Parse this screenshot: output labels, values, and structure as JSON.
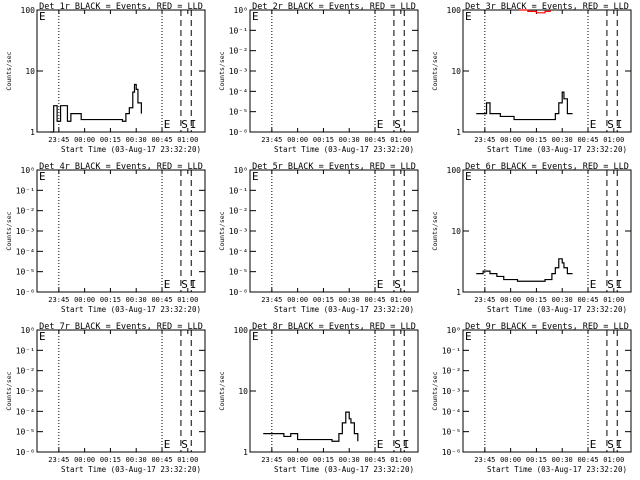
{
  "chart_data": [
    {
      "type": "line",
      "title": "Det 1r BLACK = Events, RED = LLD",
      "ylabel": "Counts/sec",
      "xlabel": "Start Time (03-Aug-17 23:32:20)",
      "x_ticks": [
        "23:45",
        "00:00",
        "00:15",
        "00:30",
        "00:45",
        "01:00"
      ],
      "y_scale": "log",
      "ylim": [
        1,
        100
      ],
      "y_ticks": [
        "1",
        "10",
        "100"
      ],
      "markers": [
        "E",
        "S",
        "I"
      ],
      "series": [
        {
          "color": "#000000",
          "x": [
            "23:40",
            "23:42",
            "23:44",
            "23:46",
            "23:48",
            "23:50",
            "23:52",
            "23:55",
            "23:58",
            "00:02",
            "00:06",
            "00:10",
            "00:14",
            "00:18",
            "00:22",
            "00:24",
            "00:26",
            "00:28",
            "00:29",
            "00:30",
            "00:31",
            "00:33"
          ],
          "values": [
            1,
            2.7,
            1.5,
            2.7,
            2.7,
            1.5,
            2,
            2,
            1.6,
            1.6,
            1.6,
            1.6,
            1.6,
            1.6,
            1.5,
            2,
            2.5,
            4.5,
            6,
            5,
            3,
            2
          ]
        }
      ]
    },
    {
      "type": "line",
      "title": "Det 2r BLACK = Events, RED = LLD",
      "ylabel": "Counts/sec",
      "xlabel": "Start Time (03-Aug-17 23:32:20)",
      "x_ticks": [
        "23:45",
        "00:00",
        "00:15",
        "00:30",
        "00:45",
        "01:00"
      ],
      "y_scale": "log",
      "ylim": [
        1e-06,
        1
      ],
      "y_ticks": [
        "10⁰",
        "10⁻¹",
        "10⁻²",
        "10⁻³",
        "10⁻⁴",
        "10⁻⁵",
        "10⁻⁶"
      ],
      "markers": [
        "E",
        "S"
      ],
      "series": []
    },
    {
      "type": "line",
      "title": "Det 3r BLACK = Events, RED = LLD",
      "ylabel": "Counts/sec",
      "xlabel": "Start Time (03-Aug-17 23:32:20)",
      "x_ticks": [
        "23:45",
        "00:00",
        "00:15",
        "00:30",
        "00:45",
        "01:00"
      ],
      "y_scale": "log",
      "ylim": [
        1,
        100
      ],
      "y_ticks": [
        "1",
        "10",
        "100"
      ],
      "markers": [
        "E",
        "S",
        "I"
      ],
      "series": [
        {
          "color": "#000000",
          "x": [
            "23:40",
            "23:44",
            "23:46",
            "23:48",
            "23:50",
            "23:54",
            "23:58",
            "00:02",
            "00:06",
            "00:10",
            "00:14",
            "00:18",
            "00:22",
            "00:26",
            "00:28",
            "00:30",
            "00:31",
            "00:33",
            "00:36"
          ],
          "values": [
            2,
            2,
            3,
            2,
            2,
            1.8,
            1.8,
            1.6,
            1.6,
            1.6,
            1.6,
            1.6,
            1.6,
            2,
            3,
            4.5,
            3.5,
            2,
            2
          ]
        },
        {
          "color": "#ff0000",
          "x": [
            "00:05",
            "00:10",
            "00:15",
            "00:18",
            "00:20",
            "00:23"
          ],
          "values": [
            100,
            95,
            90,
            90,
            95,
            100
          ]
        }
      ]
    },
    {
      "type": "line",
      "title": "Det 4r BLACK = Events, RED = LLD",
      "ylabel": "Counts/sec",
      "xlabel": "Start Time (03-Aug-17 23:32:20)",
      "x_ticks": [
        "23:45",
        "00:00",
        "00:15",
        "00:30",
        "00:45",
        "01:00"
      ],
      "y_scale": "log",
      "ylim": [
        1e-06,
        1
      ],
      "y_ticks": [
        "10⁰",
        "10⁻¹",
        "10⁻²",
        "10⁻³",
        "10⁻⁴",
        "10⁻⁵",
        "10⁻⁶"
      ],
      "markers": [
        "E",
        "S",
        "I"
      ],
      "series": []
    },
    {
      "type": "line",
      "title": "Det 5r BLACK = Events, RED = LLD",
      "ylabel": "Counts/sec",
      "xlabel": "Start Time (03-Aug-17 23:32:20)",
      "x_ticks": [
        "23:45",
        "00:00",
        "00:15",
        "00:30",
        "00:45",
        "01:00"
      ],
      "y_scale": "log",
      "ylim": [
        1e-06,
        1
      ],
      "y_ticks": [
        "10⁰",
        "10⁻¹",
        "10⁻²",
        "10⁻³",
        "10⁻⁴",
        "10⁻⁵",
        "10⁻⁶"
      ],
      "markers": [
        "E",
        "S"
      ],
      "series": []
    },
    {
      "type": "line",
      "title": "Det 6r BLACK = Events, RED = LLD",
      "ylabel": "Counts/sec",
      "xlabel": "Start Time (03-Aug-17 23:32:20)",
      "x_ticks": [
        "23:45",
        "00:00",
        "00:15",
        "00:30",
        "00:45",
        "01:00"
      ],
      "y_scale": "log",
      "ylim": [
        1,
        100
      ],
      "y_ticks": [
        "1",
        "10",
        "100"
      ],
      "markers": [
        "E",
        "S",
        "I"
      ],
      "series": [
        {
          "color": "#000000",
          "x": [
            "23:40",
            "23:44",
            "23:48",
            "23:52",
            "23:56",
            "00:00",
            "00:04",
            "00:08",
            "00:12",
            "00:16",
            "00:20",
            "00:24",
            "00:26",
            "00:28",
            "00:30",
            "00:31",
            "00:33",
            "00:36"
          ],
          "values": [
            2,
            2.2,
            2,
            1.8,
            1.6,
            1.6,
            1.5,
            1.5,
            1.5,
            1.5,
            1.6,
            2,
            2.5,
            3.5,
            3,
            2.5,
            2,
            2
          ]
        }
      ]
    },
    {
      "type": "line",
      "title": "Det 7r BLACK = Events, RED = LLD",
      "ylabel": "Counts/sec",
      "xlabel": "Start Time (03-Aug-17 23:32:20)",
      "x_ticks": [
        "23:45",
        "00:00",
        "00:15",
        "00:30",
        "00:45",
        "01:00"
      ],
      "y_scale": "log",
      "ylim": [
        1e-06,
        1
      ],
      "y_ticks": [
        "10⁰",
        "10⁻¹",
        "10⁻²",
        "10⁻³",
        "10⁻⁴",
        "10⁻⁵",
        "10⁻⁶"
      ],
      "markers": [
        "E",
        "S"
      ],
      "series": []
    },
    {
      "type": "line",
      "title": "Det 8r BLACK = Events, RED = LLD",
      "ylabel": "Counts/sec",
      "xlabel": "Start Time (03-Aug-17 23:32:20)",
      "x_ticks": [
        "23:45",
        "00:00",
        "00:15",
        "00:30",
        "00:45",
        "01:00"
      ],
      "y_scale": "log",
      "ylim": [
        1,
        100
      ],
      "y_ticks": [
        "1",
        "10",
        "100"
      ],
      "markers": [
        "E",
        "S",
        "I"
      ],
      "series": [
        {
          "color": "#000000",
          "x": [
            "23:40",
            "23:44",
            "23:48",
            "23:52",
            "23:56",
            "00:00",
            "00:04",
            "00:08",
            "00:12",
            "00:16",
            "00:20",
            "00:24",
            "00:26",
            "00:28",
            "00:30",
            "00:31",
            "00:33",
            "00:35"
          ],
          "values": [
            2,
            2,
            2,
            1.8,
            2,
            1.6,
            1.6,
            1.6,
            1.6,
            1.6,
            1.5,
            2,
            3,
            4.5,
            3.5,
            3,
            2,
            1.5
          ]
        }
      ]
    },
    {
      "type": "line",
      "title": "Det 9r BLACK = Events, RED = LLD",
      "ylabel": "Counts/sec",
      "xlabel": "Start Time (03-Aug-17 23:32:20)",
      "x_ticks": [
        "23:45",
        "00:00",
        "00:15",
        "00:30",
        "00:45",
        "01:00"
      ],
      "y_scale": "log",
      "ylim": [
        1e-06,
        1
      ],
      "y_ticks": [
        "10⁰",
        "10⁻¹",
        "10⁻²",
        "10⁻³",
        "10⁻⁴",
        "10⁻⁵",
        "10⁻⁶"
      ],
      "markers": [
        "E",
        "S",
        "I"
      ],
      "series": []
    }
  ]
}
